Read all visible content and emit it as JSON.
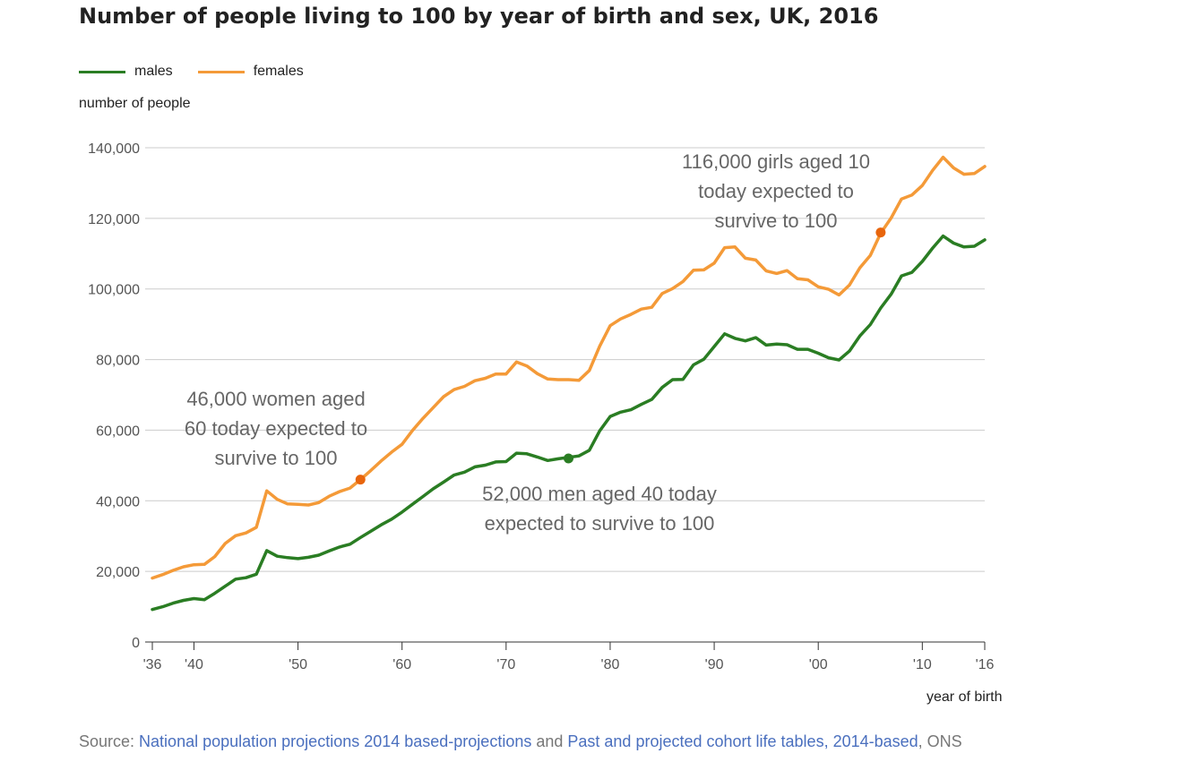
{
  "title": "Number of people living to 100 by year of birth and sex, UK, 2016",
  "legend": {
    "males": "males",
    "females": "females"
  },
  "colors": {
    "males": "#2a7d23",
    "females": "#f49a38",
    "marker_f": "#e8650c",
    "marker_m": "#2a7d23",
    "grid": "#cccccc",
    "axis": "#333333"
  },
  "source": {
    "prefix": "Source: ",
    "link1": "National population projections 2014 based-projections",
    "mid": " and ",
    "link2": "Past and projected cohort life tables, 2014-based",
    "suffix": ", ONS"
  },
  "chart_data": {
    "type": "line",
    "title": "Number of people living to 100 by year of birth and sex, UK, 2016",
    "xlabel": "year of birth",
    "ylabel": "number of people",
    "xlim": [
      1936,
      2016
    ],
    "ylim": [
      0,
      140000
    ],
    "yticks": [
      0,
      20000,
      40000,
      60000,
      80000,
      100000,
      120000,
      140000
    ],
    "ytick_labels": [
      "0",
      "20,000",
      "40,000",
      "60,000",
      "80,000",
      "100,000",
      "120,000",
      "140,000"
    ],
    "xticks": [
      1936,
      1940,
      1950,
      1960,
      1970,
      1980,
      1990,
      2000,
      2010,
      2016
    ],
    "xtick_labels": [
      "'36",
      "'40",
      "'50",
      "'60",
      "'70",
      "'80",
      "'90",
      "'00",
      "'10",
      "'16"
    ],
    "grid": true,
    "legend_position": "top-left",
    "x": [
      1936,
      1937,
      1938,
      1939,
      1940,
      1941,
      1942,
      1943,
      1944,
      1945,
      1946,
      1947,
      1948,
      1949,
      1950,
      1951,
      1952,
      1953,
      1954,
      1955,
      1956,
      1957,
      1958,
      1959,
      1960,
      1961,
      1962,
      1963,
      1964,
      1965,
      1966,
      1967,
      1968,
      1969,
      1970,
      1971,
      1972,
      1973,
      1974,
      1975,
      1976,
      1977,
      1978,
      1979,
      1980,
      1981,
      1982,
      1983,
      1984,
      1985,
      1986,
      1987,
      1988,
      1989,
      1990,
      1991,
      1992,
      1993,
      1994,
      1995,
      1996,
      1997,
      1998,
      1999,
      2000,
      2001,
      2002,
      2003,
      2004,
      2005,
      2006,
      2007,
      2008,
      2009,
      2010,
      2011,
      2012,
      2013,
      2014,
      2015,
      2016
    ],
    "series": [
      {
        "name": "males",
        "values": [
          9200,
          10000,
          11000,
          11800,
          12300,
          12000,
          13800,
          15800,
          17800,
          18200,
          19200,
          25900,
          24300,
          23900,
          23600,
          24000,
          24600,
          25800,
          26900,
          27700,
          29600,
          31400,
          33200,
          34800,
          36800,
          39000,
          41200,
          43400,
          45300,
          47300,
          48100,
          49600,
          50100,
          51000,
          51100,
          53500,
          53300,
          52400,
          51400,
          51900,
          52300,
          52700,
          54300,
          59800,
          63900,
          65100,
          65800,
          67300,
          68700,
          72100,
          74300,
          74400,
          78500,
          80100,
          83700,
          87300,
          86000,
          85300,
          86200,
          84100,
          84400,
          84200,
          82900,
          82900,
          81800,
          80500,
          79900,
          82400,
          86700,
          89900,
          94600,
          98500,
          103700,
          104700,
          107800,
          111600,
          115000,
          113000,
          111900,
          112100,
          113900
        ]
      },
      {
        "name": "females",
        "values": [
          18100,
          19100,
          20300,
          21300,
          21900,
          22000,
          24200,
          27900,
          30100,
          30900,
          32500,
          42800,
          40400,
          39100,
          39000,
          38800,
          39500,
          41300,
          42600,
          43600,
          46000,
          48600,
          51300,
          53800,
          56000,
          59900,
          63300,
          66400,
          69500,
          71500,
          72400,
          74000,
          74700,
          75900,
          75900,
          79300,
          78200,
          76000,
          74500,
          74300,
          74300,
          74100,
          76900,
          83800,
          89600,
          91500,
          92800,
          94300,
          94800,
          98700,
          100100,
          102100,
          105300,
          105400,
          107300,
          111700,
          111900,
          108700,
          108200,
          105100,
          104400,
          105200,
          102900,
          102600,
          100600,
          99900,
          98300,
          101100,
          106000,
          109500,
          115800,
          120100,
          125500,
          126600,
          129300,
          133600,
          137300,
          134300,
          132500,
          132700,
          134700
        ]
      }
    ],
    "annotations": [
      {
        "series": "females",
        "x": 1956,
        "y": 46000,
        "lines": [
          "46,000 women aged",
          "60 today expected to",
          "survive to 100"
        ]
      },
      {
        "series": "males",
        "x": 1976,
        "y": 52000,
        "lines": [
          "52,000 men aged 40 today",
          "expected to survive to 100"
        ]
      },
      {
        "series": "females",
        "x": 2006,
        "y": 116000,
        "lines": [
          "116,000 girls aged 10",
          "today expected to",
          "survive to 100"
        ]
      }
    ]
  }
}
